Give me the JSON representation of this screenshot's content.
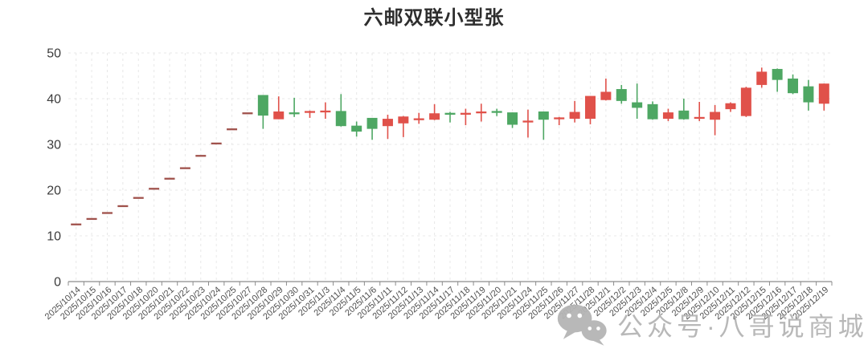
{
  "title": "六邮双联小型张",
  "watermark": {
    "label": "公众号·八哥说商城",
    "icon": "wechat-icon",
    "color": "#b5b5b5"
  },
  "chart_data": {
    "type": "candlestick",
    "title": "六邮双联小型张",
    "xlabel": "",
    "ylabel": "",
    "ylim": [
      0,
      50
    ],
    "y_ticks": [
      0,
      10,
      20,
      30,
      40,
      50
    ],
    "grid": true,
    "legend": "none",
    "up_color": "#e0514a",
    "down_color": "#4ea763",
    "flat_color": "#a0524c",
    "grid_color": "#e8e8e8",
    "axis_color": "#8c8c8c",
    "x_label_color": "#4d4d4d",
    "y_label_color": "#3c3c3c",
    "candles": [
      {
        "date": "2025/10/14",
        "open": 12.7,
        "close": 12.7,
        "low": 12.7,
        "high": 12.7,
        "dir": "up"
      },
      {
        "date": "2025/10/15",
        "open": 13.9,
        "close": 13.9,
        "low": 13.9,
        "high": 13.9,
        "dir": "up"
      },
      {
        "date": "2025/10/16",
        "open": 15.2,
        "close": 15.2,
        "low": 15.2,
        "high": 15.2,
        "dir": "up"
      },
      {
        "date": "2025/10/17",
        "open": 16.7,
        "close": 16.7,
        "low": 16.7,
        "high": 16.7,
        "dir": "up"
      },
      {
        "date": "2025/10/18",
        "open": 18.5,
        "close": 18.5,
        "low": 18.5,
        "high": 18.5,
        "dir": "up"
      },
      {
        "date": "2025/10/20",
        "open": 20.5,
        "close": 20.5,
        "low": 20.5,
        "high": 20.5,
        "dir": "up"
      },
      {
        "date": "2025/10/21",
        "open": 22.7,
        "close": 22.7,
        "low": 22.7,
        "high": 22.7,
        "dir": "up"
      },
      {
        "date": "2025/10/22",
        "open": 25.0,
        "close": 25.0,
        "low": 25.0,
        "high": 25.0,
        "dir": "up"
      },
      {
        "date": "2025/10/23",
        "open": 27.7,
        "close": 27.7,
        "low": 27.7,
        "high": 27.7,
        "dir": "up"
      },
      {
        "date": "2025/10/24",
        "open": 30.4,
        "close": 30.4,
        "low": 30.4,
        "high": 30.4,
        "dir": "up"
      },
      {
        "date": "2025/10/25",
        "open": 33.5,
        "close": 33.5,
        "low": 33.5,
        "high": 33.5,
        "dir": "up"
      },
      {
        "date": "2025/10/27",
        "open": 37.0,
        "close": 37.0,
        "low": 37.0,
        "high": 37.0,
        "dir": "up"
      },
      {
        "date": "2025/10/28",
        "open": 40.8,
        "close": 36.3,
        "low": 33.4,
        "high": 40.8,
        "dir": "down"
      },
      {
        "date": "2025/10/29",
        "open": 35.5,
        "close": 37.2,
        "low": 35.5,
        "high": 40.5,
        "dir": "up"
      },
      {
        "date": "2025/10/30",
        "open": 37.0,
        "close": 36.8,
        "low": 36.0,
        "high": 40.2,
        "dir": "down"
      },
      {
        "date": "2025/10/31",
        "open": 37.1,
        "close": 37.3,
        "low": 35.8,
        "high": 37.4,
        "dir": "up"
      },
      {
        "date": "2025/11/3",
        "open": 37.2,
        "close": 37.4,
        "low": 35.6,
        "high": 39.2,
        "dir": "up"
      },
      {
        "date": "2025/11/4",
        "open": 37.3,
        "close": 34.0,
        "low": 33.9,
        "high": 41.0,
        "dir": "down"
      },
      {
        "date": "2025/11/5",
        "open": 34.1,
        "close": 32.8,
        "low": 31.7,
        "high": 35.0,
        "dir": "down"
      },
      {
        "date": "2025/11/6",
        "open": 35.8,
        "close": 33.4,
        "low": 31.0,
        "high": 35.8,
        "dir": "down"
      },
      {
        "date": "2025/11/11",
        "open": 34.0,
        "close": 35.6,
        "low": 31.2,
        "high": 36.5,
        "dir": "up"
      },
      {
        "date": "2025/11/12",
        "open": 34.6,
        "close": 36.1,
        "low": 31.6,
        "high": 36.2,
        "dir": "up"
      },
      {
        "date": "2025/11/13",
        "open": 35.4,
        "close": 35.7,
        "low": 34.5,
        "high": 36.9,
        "dir": "up"
      },
      {
        "date": "2025/11/14",
        "open": 35.4,
        "close": 36.8,
        "low": 35.3,
        "high": 38.8,
        "dir": "up"
      },
      {
        "date": "2025/11/17",
        "open": 36.9,
        "close": 36.7,
        "low": 34.8,
        "high": 37.1,
        "dir": "down"
      },
      {
        "date": "2025/11/18",
        "open": 36.7,
        "close": 36.9,
        "low": 34.2,
        "high": 37.8,
        "dir": "up"
      },
      {
        "date": "2025/11/19",
        "open": 37.0,
        "close": 37.2,
        "low": 35.0,
        "high": 38.9,
        "dir": "up"
      },
      {
        "date": "2025/11/20",
        "open": 37.3,
        "close": 37.1,
        "low": 36.2,
        "high": 37.8,
        "dir": "down"
      },
      {
        "date": "2025/11/21",
        "open": 37.0,
        "close": 34.3,
        "low": 33.6,
        "high": 37.0,
        "dir": "down"
      },
      {
        "date": "2025/11/24",
        "open": 35.0,
        "close": 35.2,
        "low": 31.5,
        "high": 37.6,
        "dir": "up"
      },
      {
        "date": "2025/11/25",
        "open": 37.2,
        "close": 35.4,
        "low": 31.0,
        "high": 37.2,
        "dir": "down"
      },
      {
        "date": "2025/11/26",
        "open": 35.7,
        "close": 35.9,
        "low": 34.2,
        "high": 36.0,
        "dir": "up"
      },
      {
        "date": "2025/11/27",
        "open": 35.6,
        "close": 37.1,
        "low": 34.8,
        "high": 39.5,
        "dir": "up"
      },
      {
        "date": "2025/11/28",
        "open": 35.6,
        "close": 40.6,
        "low": 34.4,
        "high": 40.6,
        "dir": "up"
      },
      {
        "date": "2025/12/1",
        "open": 39.7,
        "close": 41.5,
        "low": 39.6,
        "high": 44.4,
        "dir": "up"
      },
      {
        "date": "2025/12/2",
        "open": 42.1,
        "close": 39.5,
        "low": 38.9,
        "high": 43.0,
        "dir": "down"
      },
      {
        "date": "2025/12/3",
        "open": 39.2,
        "close": 38.0,
        "low": 35.6,
        "high": 43.3,
        "dir": "down"
      },
      {
        "date": "2025/12/4",
        "open": 38.8,
        "close": 35.5,
        "low": 35.4,
        "high": 39.4,
        "dir": "down"
      },
      {
        "date": "2025/12/5",
        "open": 35.6,
        "close": 37.0,
        "low": 35.1,
        "high": 37.8,
        "dir": "up"
      },
      {
        "date": "2025/12/8",
        "open": 37.4,
        "close": 35.5,
        "low": 35.4,
        "high": 40.0,
        "dir": "down"
      },
      {
        "date": "2025/12/9",
        "open": 35.8,
        "close": 36.0,
        "low": 35.1,
        "high": 39.3,
        "dir": "up"
      },
      {
        "date": "2025/12/10",
        "open": 35.4,
        "close": 37.1,
        "low": 32.0,
        "high": 38.6,
        "dir": "up"
      },
      {
        "date": "2025/12/11",
        "open": 37.7,
        "close": 39.0,
        "low": 37.1,
        "high": 39.2,
        "dir": "up"
      },
      {
        "date": "2025/12/12",
        "open": 36.2,
        "close": 42.4,
        "low": 36.0,
        "high": 42.6,
        "dir": "up"
      },
      {
        "date": "2025/12/15",
        "open": 43.0,
        "close": 45.9,
        "low": 42.4,
        "high": 46.8,
        "dir": "up"
      },
      {
        "date": "2025/12/16",
        "open": 46.5,
        "close": 44.1,
        "low": 41.5,
        "high": 46.6,
        "dir": "down"
      },
      {
        "date": "2025/12/17",
        "open": 44.4,
        "close": 41.2,
        "low": 41.0,
        "high": 45.3,
        "dir": "down"
      },
      {
        "date": "2025/12/18",
        "open": 42.7,
        "close": 39.2,
        "low": 37.4,
        "high": 44.1,
        "dir": "down"
      },
      {
        "date": "2025/12/19",
        "open": 38.9,
        "close": 43.3,
        "low": 37.4,
        "high": 43.3,
        "dir": "up"
      }
    ]
  }
}
